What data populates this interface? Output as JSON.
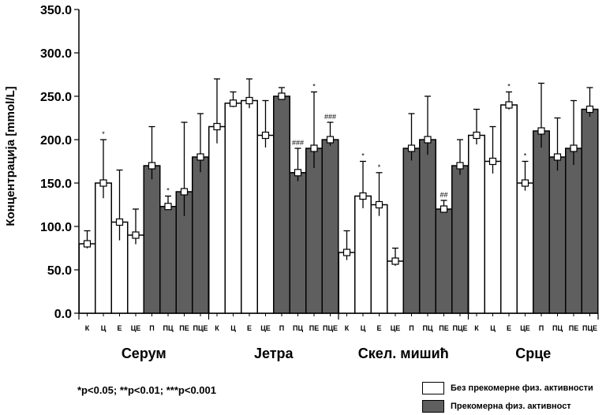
{
  "chart_data": {
    "type": "bar",
    "ylabel": "Концентрација [mmol/L]",
    "ylim": [
      0,
      350
    ],
    "yticks": [
      "0.0",
      "50.0",
      "100.0",
      "150.0",
      "200.0",
      "250.0",
      "300.0",
      "350.0"
    ],
    "colors": {
      "white": "#ffffff",
      "dark": "#5f5f5f",
      "stroke": "#000000"
    },
    "groups": [
      {
        "name": "Серум",
        "bars": [
          {
            "label": "К",
            "value": 80,
            "err": 15,
            "dark": false,
            "sig": ""
          },
          {
            "label": "Ц",
            "value": 150,
            "err": 50,
            "dark": false,
            "sig": "*"
          },
          {
            "label": "Е",
            "value": 105,
            "err": 60,
            "dark": false,
            "sig": ""
          },
          {
            "label": "ЦЕ",
            "value": 90,
            "err": 30,
            "dark": false,
            "sig": ""
          },
          {
            "label": "П",
            "value": 170,
            "err": 45,
            "dark": true,
            "sig": ""
          },
          {
            "label": "ПЦ",
            "value": 123,
            "err": 12,
            "dark": true,
            "sig": "*"
          },
          {
            "label": "ПЕ",
            "value": 140,
            "err": 80,
            "dark": true,
            "sig": ""
          },
          {
            "label": "ПЦЕ",
            "value": 180,
            "err": 50,
            "dark": true,
            "sig": ""
          }
        ]
      },
      {
        "name": "Јетра",
        "bars": [
          {
            "label": "К",
            "value": 215,
            "err": 55,
            "dark": false,
            "sig": ""
          },
          {
            "label": "Ц",
            "value": 242,
            "err": 13,
            "dark": false,
            "sig": ""
          },
          {
            "label": "Е",
            "value": 245,
            "err": 25,
            "dark": false,
            "sig": ""
          },
          {
            "label": "ЦЕ",
            "value": 205,
            "err": 40,
            "dark": false,
            "sig": ""
          },
          {
            "label": "П",
            "value": 250,
            "err": 10,
            "dark": true,
            "sig": ""
          },
          {
            "label": "ПЦ",
            "value": 162,
            "err": 28,
            "dark": true,
            "sig": "###"
          },
          {
            "label": "ПЕ",
            "value": 190,
            "err": 65,
            "dark": true,
            "sig": "*"
          },
          {
            "label": "ПЦЕ",
            "value": 200,
            "err": 20,
            "dark": true,
            "sig": "###"
          }
        ]
      },
      {
        "name": "Скел. мишић",
        "bars": [
          {
            "label": "К",
            "value": 70,
            "err": 25,
            "dark": false,
            "sig": ""
          },
          {
            "label": "Ц",
            "value": 135,
            "err": 40,
            "dark": false,
            "sig": "*"
          },
          {
            "label": "Е",
            "value": 125,
            "err": 37,
            "dark": false,
            "sig": "*"
          },
          {
            "label": "ЦЕ",
            "value": 60,
            "err": 15,
            "dark": false,
            "sig": ""
          },
          {
            "label": "П",
            "value": 190,
            "err": 40,
            "dark": true,
            "sig": ""
          },
          {
            "label": "ПЦ",
            "value": 200,
            "err": 50,
            "dark": true,
            "sig": ""
          },
          {
            "label": "ПЕ",
            "value": 120,
            "err": 10,
            "dark": true,
            "sig": "##"
          },
          {
            "label": "ПЦЕ",
            "value": 170,
            "err": 30,
            "dark": true,
            "sig": ""
          }
        ]
      },
      {
        "name": "Срце",
        "bars": [
          {
            "label": "К",
            "value": 205,
            "err": 30,
            "dark": false,
            "sig": ""
          },
          {
            "label": "Ц",
            "value": 175,
            "err": 40,
            "dark": false,
            "sig": ""
          },
          {
            "label": "Е",
            "value": 240,
            "err": 15,
            "dark": false,
            "sig": "*"
          },
          {
            "label": "ЦЕ",
            "value": 150,
            "err": 25,
            "dark": false,
            "sig": "*"
          },
          {
            "label": "П",
            "value": 210,
            "err": 55,
            "dark": true,
            "sig": ""
          },
          {
            "label": "ПЦ",
            "value": 180,
            "err": 45,
            "dark": true,
            "sig": ""
          },
          {
            "label": "ПЕ",
            "value": 190,
            "err": 55,
            "dark": true,
            "sig": ""
          },
          {
            "label": "ПЦЕ",
            "value": 235,
            "err": 25,
            "dark": true,
            "sig": ""
          }
        ]
      }
    ]
  },
  "footnote": "*p<0.05; **p<0.01; ***p<0.001",
  "legend": {
    "white_label": "Без прекомерне физ. активности",
    "dark_label": "Прекомерна физ. активност"
  }
}
